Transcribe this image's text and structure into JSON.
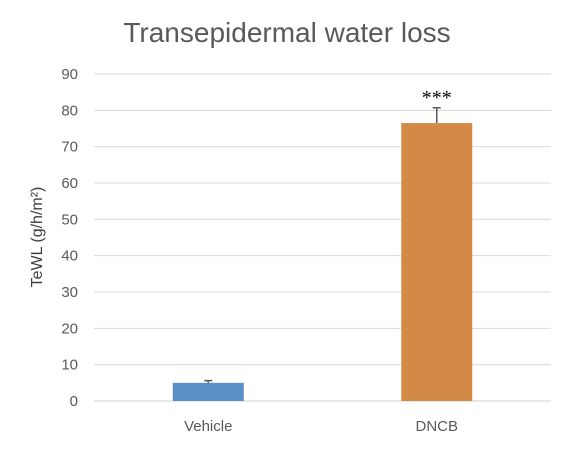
{
  "chart_data": {
    "type": "bar",
    "title": "Transepidermal water loss",
    "xlabel": "",
    "ylabel": "TeWL (g/h/m²)",
    "categories": [
      "Vehicle",
      "DNCB"
    ],
    "values": [
      5.0,
      76.5
    ],
    "errors": [
      0.6,
      4.2
    ],
    "colors": [
      "#5b8fc7",
      "#d48a47"
    ],
    "annotations": [
      "",
      "***"
    ],
    "ylim": [
      0,
      90
    ],
    "yticks": [
      0,
      10,
      20,
      30,
      40,
      50,
      60,
      70,
      80,
      90
    ],
    "grid": true,
    "legend": "none"
  }
}
